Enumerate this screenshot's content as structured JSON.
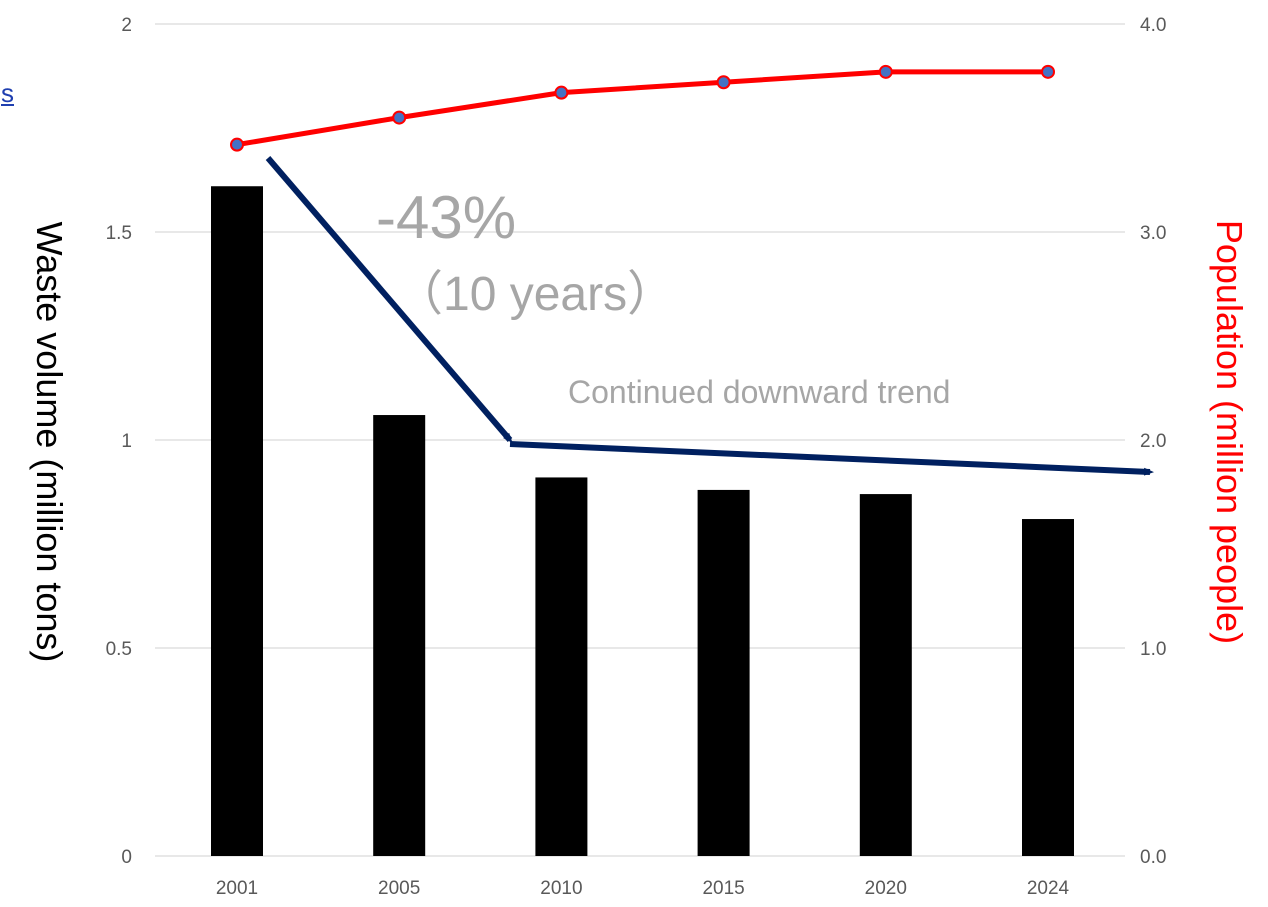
{
  "cut_link_text": "s",
  "chart_data": {
    "type": "bar",
    "categories": [
      "2001",
      "2005",
      "2010",
      "2015",
      "2020",
      "2024"
    ],
    "series": [
      {
        "type": "bar",
        "axis": "left",
        "values": [
          1.61,
          1.06,
          0.91,
          0.88,
          0.87,
          0.81
        ],
        "color": "#000000"
      },
      {
        "type": "line",
        "axis": "right",
        "values": [
          3.42,
          3.55,
          3.67,
          3.72,
          3.77,
          3.77
        ],
        "color": "#ff0000",
        "marker_color": "#4472c4"
      }
    ],
    "ylabel": "Waste volume (million tons)",
    "ylabel_right": "Population (million people)",
    "ylim": [
      0,
      2
    ],
    "ylim_right": [
      0,
      4
    ],
    "yticks": [
      "0",
      "0.5",
      "1",
      "1.5",
      "2"
    ],
    "yticks_right": [
      "0.0",
      "1.0",
      "2.0",
      "3.0",
      "4.0"
    ],
    "grid": true,
    "annotations": {
      "percent": "-43%",
      "period": "（10 years）",
      "trend": "Continued downward trend"
    },
    "arrow_color": "#002060"
  }
}
